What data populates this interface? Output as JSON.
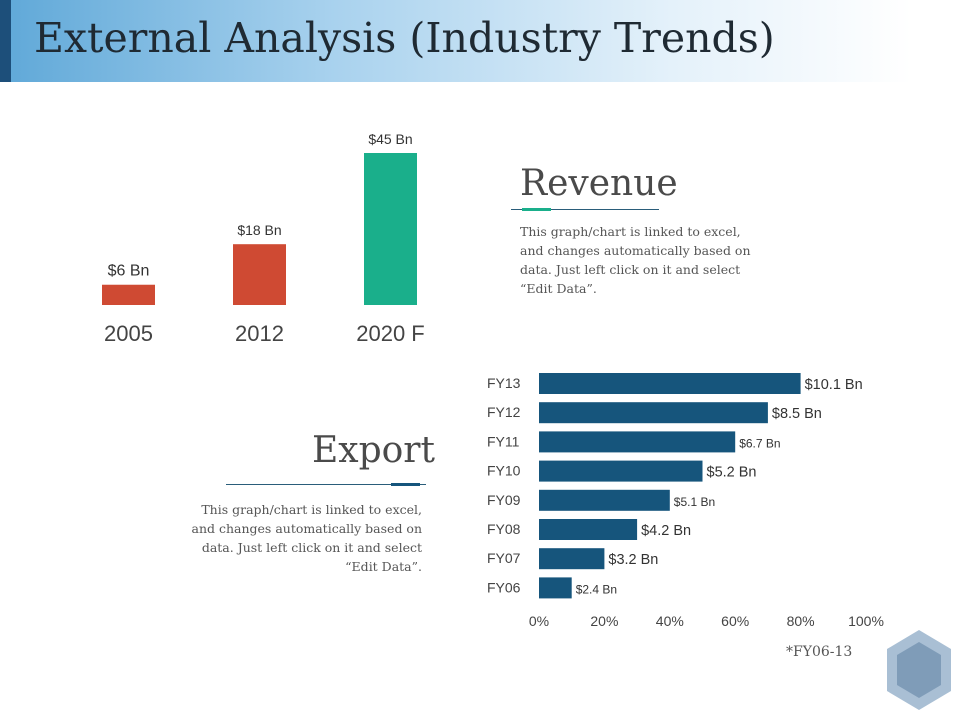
{
  "page": {
    "title": "External Analysis (Industry Trends)"
  },
  "revenue": {
    "heading": "Revenue",
    "description": "This graph/chart is linked to excel, and changes automatically based on data. Just left click on it and select “Edit Data”."
  },
  "export": {
    "heading": "Export",
    "description": "This graph/chart is linked to excel, and changes automatically based on data. Just left click on it and select “Edit Data”."
  },
  "footnote": "*FY06-13",
  "colors": {
    "red": "#cf4a33",
    "green": "#1aaf8b",
    "blue": "#16557c",
    "accent": "#1aaf8b",
    "hex": "#7f9cb8"
  },
  "chart_data": [
    {
      "type": "bar",
      "title": "Revenue",
      "categories": [
        "2005",
        "2012",
        "2020 F"
      ],
      "values": [
        6,
        18,
        45
      ],
      "value_labels": [
        "$6 Bn",
        "$18 Bn",
        "$45 Bn"
      ],
      "bar_colors": [
        "#cf4a33",
        "#cf4a33",
        "#1aaf8b"
      ],
      "ylim": [
        0,
        45
      ]
    },
    {
      "type": "bar",
      "orientation": "horizontal",
      "title": "Export",
      "categories": [
        "FY13",
        "FY12",
        "FY11",
        "FY10",
        "FY09",
        "FY08",
        "FY07",
        "FY06"
      ],
      "values": [
        80,
        70,
        60,
        50,
        40,
        30,
        20,
        10
      ],
      "value_labels": [
        "$10.1 Bn",
        "$8.5 Bn",
        "$6.7 Bn",
        "$5.2 Bn",
        "$5.1 Bn",
        "$4.2 Bn",
        "$3.2 Bn",
        "$2.4 Bn"
      ],
      "label_emphasis": [
        "large",
        "large",
        "small",
        "large",
        "small",
        "large",
        "large",
        "small"
      ],
      "xlim": [
        0,
        100
      ],
      "xticks": [
        "0%",
        "20%",
        "40%",
        "60%",
        "80%",
        "100%"
      ]
    }
  ]
}
